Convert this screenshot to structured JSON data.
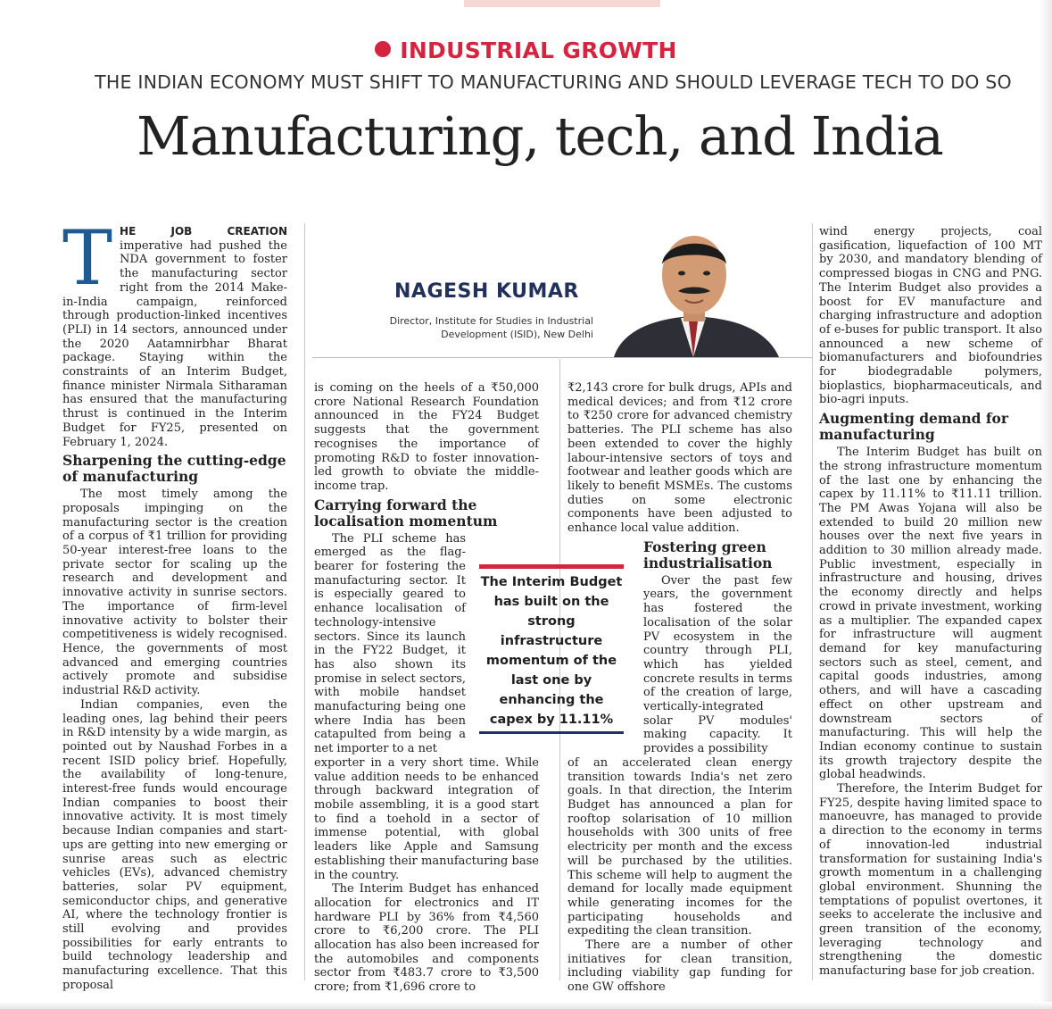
{
  "kicker": "INDUSTRIAL GROWTH",
  "subhead": "THE INDIAN ECONOMY MUST SHIFT TO MANUFACTURING AND SHOULD LEVERAGE TECH TO DO SO",
  "headline": "Manufacturing, tech, and India",
  "author": {
    "name": "NAGESH KUMAR",
    "title_line1": "Director, Institute for Studies in Industrial",
    "title_line2": "Development (ISID), New Delhi"
  },
  "pull_quote": "The Interim Budget has built on the strong infrastructure momentum of the last one by enhancing the capex by 11.11%",
  "col1": {
    "dropcap": "T",
    "lead": "HE JOB CREATION",
    "p1_rest": " imperative had pushed the NDA government to foster the manufacturing sector right from the 2014 Make-in-India campaign, reinforced through production-linked incentives (PLI) in 14 sectors, announced under the 2020 Aatamnirbhar Bharat package. Staying within the constraints of an Interim Budget, finance minister Nirmala Sitharaman has ensured that the manufacturing thrust is continued in the Interim Budget for FY25, presented on February 1, 2024.",
    "h1": "Sharpening the cutting-edge of manufacturing",
    "p2": "The most timely among the proposals impinging on the manufacturing sector is the creation of a corpus of ₹1 trillion for providing 50-year interest-free loans to the private sector for scaling up the research and development and innovative activity in sunrise sectors. The importance of firm-level innovative activity to bolster their competitiveness is widely recognised. Hence, the governments of most advanced and emerging countries actively promote and subsidise industrial R&D activity.",
    "p3": "Indian companies, even the leading ones, lag behind their peers in R&D intensity by a wide margin, as pointed out by Naushad Forbes in a recent ISID policy brief. Hopefully, the availability of long-tenure, interest-free funds would encourage Indian companies to boost their innovative activity. It is most timely because Indian companies and start-ups are getting into new emerging or sunrise areas such as electric vehicles (EVs), advanced chemistry batteries, solar PV equipment, semiconductor chips, and generative AI, where the technology frontier is still evolving and provides possibilities for early entrants to build technology leadership and manufacturing excellence. That this proposal"
  },
  "col2": {
    "p1": "is coming on the heels of a ₹50,000 crore National Research Foundation announced in the FY24 Budget suggests that the government recognises the importance of promoting R&D to foster innovation-led growth to obviate the middle-income trap.",
    "h1": "Carrying forward the localisation momentum",
    "p2a": "The PLI scheme has emerged as the flag-bearer for fostering the manufacturing sector. It is especially geared to enhance localisation of technology-intensive sectors. Since its launch in the FY22 Budget, it has also shown its promise in select sectors, with mobile handset manufacturing being one where India has been catapulted from being a net importer to a net",
    "p2b": "exporter in a very short time. While value addition needs to be enhanced through backward integration of mobile assembling, it is a good start to find a toehold in a sector of immense potential, with global leaders like Apple and Samsung establishing their manufacturing base in the country.",
    "p3": "The Interim Budget has enhanced allocation for electronics and IT hardware PLI by 36% from ₹4,560 crore to ₹6,200 crore. The PLI allocation has also been increased for the automobiles and components sector from ₹483.7 crore to ₹3,500 crore; from ₹1,696 crore to"
  },
  "col3": {
    "p1": "₹2,143 crore for bulk drugs, APIs and medical devices; and from ₹12 crore to ₹250 crore for advanced chemistry batteries. The PLI scheme has also been extended to cover the highly labour-intensive sectors of toys and footwear and leather goods which are likely to benefit MSMEs. The customs duties on some electronic components have been adjusted to enhance local value addition.",
    "h1": "Fostering green industrialisation",
    "p2a": "Over the past few years, the government has fostered the localisation of the solar PV ecosystem in the country through PLI, which has yielded concrete results in terms of the creation of large, vertically-integrated solar PV modules' making capacity. It provides a possibility",
    "p2b": "of an accelerated clean energy transition towards India's net zero goals. In that direction, the Interim Budget has announced a plan for rooftop solarisation of 10 million households with 300 units of free electricity per month and the excess will be purchased by the utilities. This scheme will help to augment the demand for locally made equipment while generating incomes for the participating households and expediting the clean transition.",
    "p3": "There are a number of other initiatives for clean transition, including viability gap funding for one GW offshore"
  },
  "col4": {
    "p1": "wind energy projects, coal gasification, liquefaction of 100 MT by 2030, and mandatory blending of compressed biogas in CNG and PNG. The Interim Budget also provides a boost for EV manufacture and charging infrastructure and adoption of e-buses for public transport. It also announced a new scheme of biomanufacturers and biofoundries for biodegradable polymers, bioplastics, biopharmaceuticals, and bio-agri inputs.",
    "h1": "Augmenting demand for manufacturing",
    "p2": "The Interim Budget has built on the strong infrastructure momentum of the last one by enhancing the capex by 11.11% to ₹11.11 trillion. The PM Awas Yojana will also be extended to build 20 million new houses over the next five years in addition to 30 million already made. Public investment, especially in infrastructure and housing, drives the economy directly and helps crowd in private investment, working as a multiplier. The expanded capex for infrastructure will augment demand for key manufacturing sectors such as steel, cement, and capital goods industries, among others, and will have a cascading effect on other upstream and downstream sectors of manufacturing. This will help the Indian economy continue to sustain its growth trajectory despite the global headwinds.",
    "p3": "Therefore, the Interim Budget for FY25, despite having limited space to manoeuvre, has managed to provide a direction to the economy in terms of innovation-led industrial transformation for sustaining India's growth momentum in a challenging global environment. Shunning the temptations of populist overtones, it seeks to accelerate the inclusive and green transition of the economy, leveraging technology and strengthening the domestic manufacturing base for job creation."
  }
}
